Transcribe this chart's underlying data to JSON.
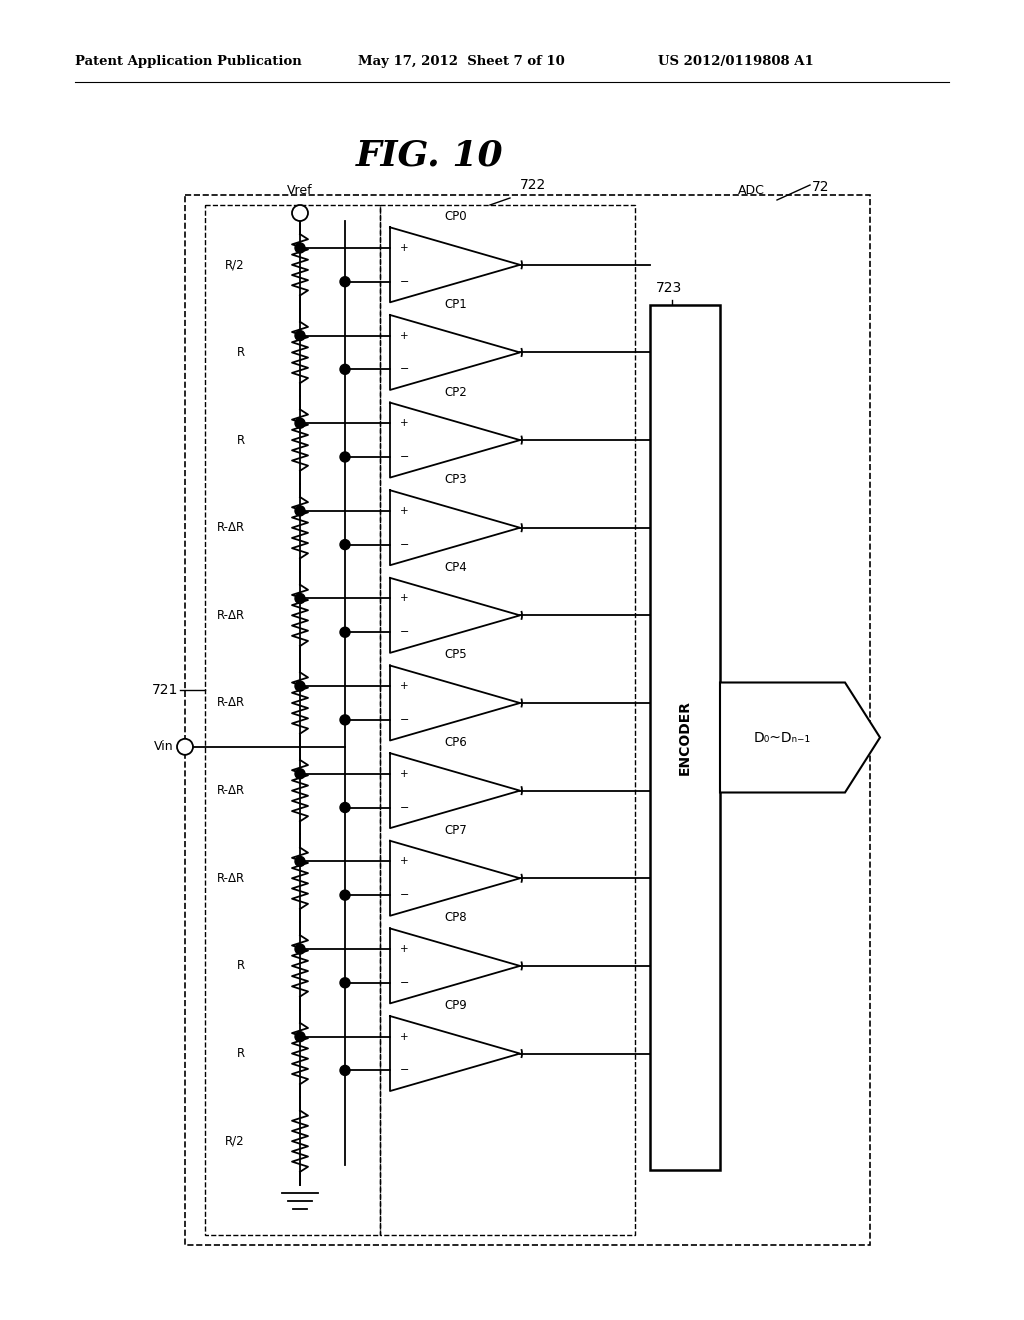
{
  "title": "FIG. 10",
  "header_left": "Patent Application Publication",
  "header_center": "May 17, 2012  Sheet 7 of 10",
  "header_right": "US 2012/0119808 A1",
  "bg_color": "#ffffff",
  "line_color": "#000000",
  "comparators": [
    "CP0",
    "CP1",
    "CP2",
    "CP3",
    "CP4",
    "CP5",
    "CP6",
    "CP7",
    "CP8",
    "CP9"
  ],
  "resistors": [
    "R/2",
    "R",
    "R",
    "R-ΔR",
    "R-ΔR",
    "R-ΔR",
    "R-ΔR",
    "R-ΔR",
    "R",
    "R",
    "R/2"
  ],
  "label_721": "721",
  "label_722": "722",
  "label_723": "723",
  "label_72": "72",
  "label_adc": "ADC",
  "label_encoder": "ENCODER",
  "label_vref": "Vref",
  "label_vin": "Vin",
  "label_output": "D₀~Dₙ₋₁"
}
